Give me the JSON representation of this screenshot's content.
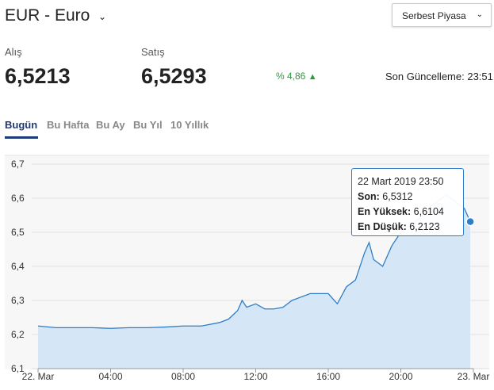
{
  "header": {
    "title": "EUR - Euro",
    "market": "Serbest Piyasa"
  },
  "quotes": {
    "buy_label": "Alış",
    "buy": "6,5213",
    "sell_label": "Satış",
    "sell": "6,5293",
    "change": "% 4,86",
    "updated": "Son Güncelleme: 23:51"
  },
  "tabs": [
    "Bugün",
    "Bu Hafta",
    "Bu Ay",
    "Bu Yıl",
    "10 Yıllık"
  ],
  "tooltip": {
    "date": "22 Mart 2019 23:50",
    "last_label": "Son:",
    "last": "6,5312",
    "high_label": "En Yüksek:",
    "high": "6,6104",
    "low_label": "En Düşük:",
    "low": "6,2123"
  },
  "chart_data": {
    "type": "area",
    "color": "#2f7dc6",
    "fill": "#d5e7f6",
    "grid": true,
    "x": [
      0,
      1,
      2,
      3,
      4,
      5,
      6,
      7,
      8,
      9,
      10,
      10.5,
      11,
      11.25,
      11.5,
      12,
      12.5,
      13,
      13.5,
      14,
      14.5,
      15,
      15.5,
      16,
      16.5,
      17,
      17.5,
      18,
      18.25,
      18.5,
      19,
      19.5,
      20,
      20.5,
      21,
      21.5,
      22,
      22.5,
      23,
      23.5,
      23.83
    ],
    "values": [
      6.225,
      6.22,
      6.22,
      6.22,
      6.218,
      6.22,
      6.22,
      6.222,
      6.225,
      6.225,
      6.235,
      6.245,
      6.27,
      6.3,
      6.28,
      6.29,
      6.275,
      6.275,
      6.28,
      6.3,
      6.31,
      6.32,
      6.32,
      6.32,
      6.29,
      6.34,
      6.36,
      6.44,
      6.47,
      6.42,
      6.4,
      6.46,
      6.5,
      6.52,
      6.54,
      6.57,
      6.59,
      6.61,
      6.59,
      6.57,
      6.5312
    ],
    "xlim": [
      0,
      24
    ],
    "xticks": [
      {
        "value": 0,
        "label": "22. Mar"
      },
      {
        "value": 4,
        "label": "04:00"
      },
      {
        "value": 8,
        "label": "08:00"
      },
      {
        "value": 12,
        "label": "12:00"
      },
      {
        "value": 16,
        "label": "16:00"
      },
      {
        "value": 20,
        "label": "20:00"
      },
      {
        "value": 24,
        "label": "23. Mar"
      }
    ],
    "ylim": [
      6.1,
      6.7
    ],
    "yticks": [
      {
        "value": 6.1,
        "label": "6,1"
      },
      {
        "value": 6.2,
        "label": "6,2"
      },
      {
        "value": 6.3,
        "label": "6,3"
      },
      {
        "value": 6.4,
        "label": "6,4"
      },
      {
        "value": 6.5,
        "label": "6,5"
      },
      {
        "value": 6.6,
        "label": "6,6"
      },
      {
        "value": 6.7,
        "label": "6,7"
      }
    ]
  }
}
